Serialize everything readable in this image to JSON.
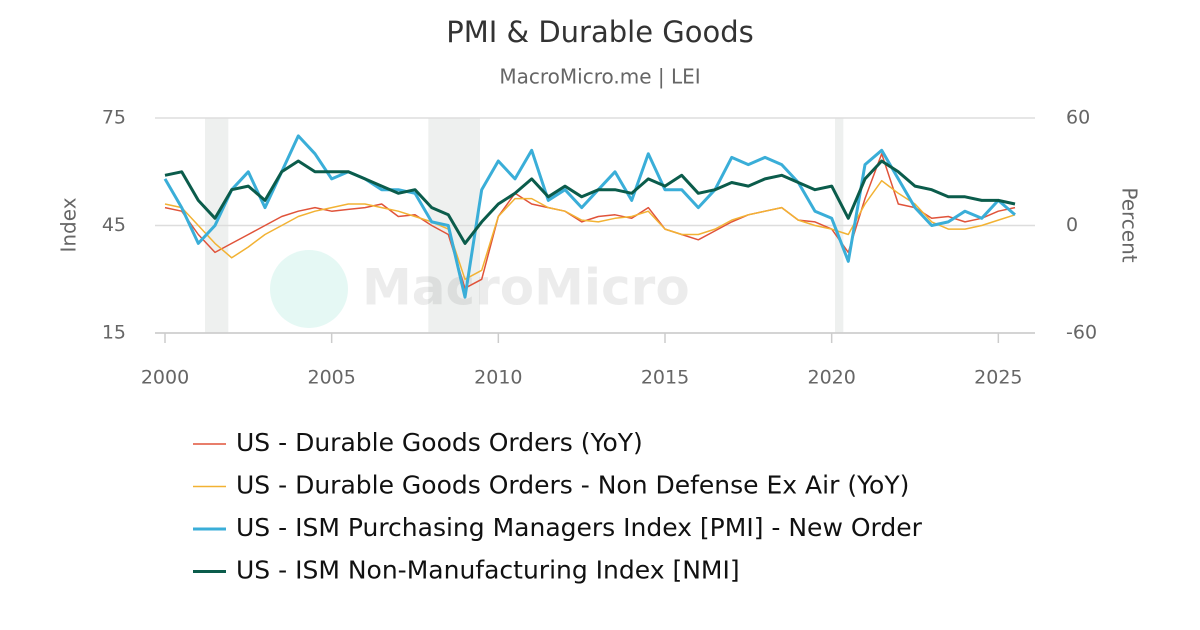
{
  "chart_data": {
    "type": "line",
    "title": "PMI & Durable Goods",
    "subtitle": "MacroMicro.me | LEI",
    "watermark": "MacroMicro",
    "y_label": "Index",
    "y2_label": "Percent",
    "xlim": [
      1999.7,
      2026.1
    ],
    "xticks": [
      2000,
      2005,
      2010,
      2015,
      2020,
      2025
    ],
    "ylim": [
      15,
      75
    ],
    "yticks": [
      15,
      45,
      75
    ],
    "y2lim": [
      -60,
      60
    ],
    "y2ticks": [
      -60,
      0,
      60
    ],
    "grid": true,
    "recessions": [
      [
        2001.2,
        2001.9
      ],
      [
        2007.9,
        2009.45
      ],
      [
        2020.1,
        2020.35
      ]
    ],
    "x": [
      2000,
      2000.5,
      2001,
      2001.5,
      2002,
      2002.5,
      2003,
      2003.5,
      2004,
      2004.5,
      2005,
      2005.5,
      2006,
      2006.5,
      2007,
      2007.5,
      2008,
      2008.5,
      2009,
      2009.5,
      2010,
      2010.5,
      2011,
      2011.5,
      2012,
      2012.5,
      2013,
      2013.5,
      2014,
      2014.5,
      2015,
      2015.5,
      2016,
      2016.5,
      2017,
      2017.5,
      2018,
      2018.5,
      2019,
      2019.5,
      2020,
      2020.5,
      2021,
      2021.5,
      2022,
      2022.5,
      2023,
      2023.5,
      2024,
      2024.5,
      2025,
      2025.5
    ],
    "series": [
      {
        "name": "US - Durable Goods Orders (YoY)",
        "color": "#e0533a",
        "axis": "y2",
        "width": 1.5,
        "values": [
          10,
          8,
          -5,
          -15,
          -10,
          -5,
          0,
          5,
          8,
          10,
          8,
          9,
          10,
          12,
          5,
          6,
          0,
          -5,
          -35,
          -30,
          5,
          18,
          12,
          10,
          8,
          2,
          5,
          6,
          4,
          10,
          -2,
          -5,
          -8,
          -3,
          2,
          6,
          8,
          10,
          3,
          2,
          -2,
          -15,
          15,
          40,
          12,
          10,
          4,
          5,
          2,
          4,
          8,
          10
        ]
      },
      {
        "name": "US - Durable Goods Orders - Non Defense Ex Air (YoY)",
        "color": "#f2b233",
        "axis": "y2",
        "width": 1.5,
        "values": [
          12,
          10,
          0,
          -10,
          -18,
          -12,
          -5,
          0,
          5,
          8,
          10,
          12,
          12,
          10,
          8,
          5,
          2,
          -2,
          -30,
          -25,
          5,
          15,
          15,
          10,
          8,
          3,
          2,
          4,
          5,
          8,
          -2,
          -5,
          -5,
          -2,
          3,
          6,
          8,
          10,
          3,
          0,
          -2,
          -5,
          12,
          25,
          18,
          12,
          2,
          -2,
          -2,
          0,
          3,
          6
        ]
      },
      {
        "name": "US - ISM Purchasing Managers Index [PMI] - New Order",
        "color": "#3aaed8",
        "axis": "y",
        "width": 3,
        "values": [
          58,
          50,
          40,
          45,
          55,
          60,
          50,
          60,
          70,
          65,
          58,
          60,
          58,
          55,
          55,
          54,
          46,
          45,
          25,
          55,
          63,
          58,
          66,
          52,
          55,
          50,
          55,
          60,
          52,
          65,
          55,
          55,
          50,
          55,
          64,
          62,
          64,
          62,
          57,
          49,
          47,
          35,
          62,
          66,
          58,
          50,
          45,
          46,
          49,
          47,
          52,
          48
        ]
      },
      {
        "name": "US - ISM Non-Manufacturing Index [NMI]",
        "color": "#0b5c4b",
        "axis": "y",
        "width": 3,
        "values": [
          59,
          60,
          52,
          47,
          55,
          56,
          52,
          60,
          63,
          60,
          60,
          60,
          58,
          56,
          54,
          55,
          50,
          48,
          40,
          46,
          51,
          54,
          58,
          53,
          56,
          53,
          55,
          55,
          54,
          58,
          56,
          59,
          54,
          55,
          57,
          56,
          58,
          59,
          57,
          55,
          56,
          47,
          58,
          63,
          60,
          56,
          55,
          53,
          53,
          52,
          52,
          51
        ]
      }
    ]
  }
}
